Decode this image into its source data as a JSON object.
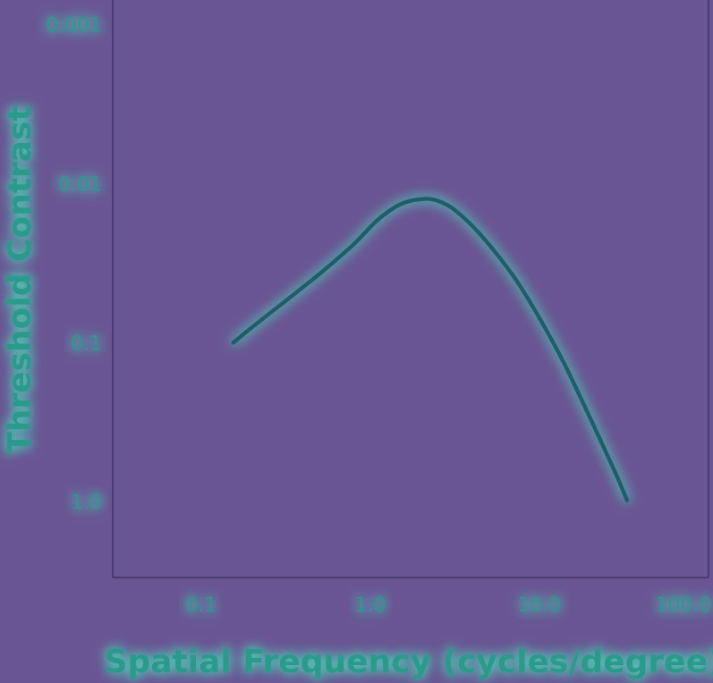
{
  "colors": {
    "background": "#6a5593",
    "text": "#2a9a8c",
    "glow": "#4fd8b8",
    "curve": "#1f5f6a",
    "axis": "#3f3567"
  },
  "chart_data": {
    "type": "line",
    "xlabel": "Spatial Frequency (cycles/degree)",
    "ylabel": "Threshold Contrast",
    "x_scale": "log",
    "y_scale": "log",
    "y_inverted": true,
    "xlim": [
      0.03,
      100.0
    ],
    "ylim": [
      0.0007,
      3.0
    ],
    "x_ticks": [
      {
        "value": 0.1,
        "label": "0.1"
      },
      {
        "value": 1.0,
        "label": "1.0"
      },
      {
        "value": 10.0,
        "label": "10.0"
      },
      {
        "value": 100.0,
        "label": "100.0"
      }
    ],
    "y_ticks": [
      {
        "value": 0.001,
        "label": "0.001"
      },
      {
        "value": 0.01,
        "label": "0.01"
      },
      {
        "value": 0.1,
        "label": "0.1"
      },
      {
        "value": 1.0,
        "label": "1.0"
      }
    ],
    "grid": false,
    "series": [
      {
        "x": [
          0.155,
          0.2,
          0.3,
          0.5,
          0.8,
          1.1,
          1.5,
          2.0,
          2.5,
          3.2,
          4.5,
          7.0,
          10.0,
          14.0,
          20.0,
          28.0,
          33.0
        ],
        "y": [
          0.1,
          0.08,
          0.057,
          0.037,
          0.024,
          0.017,
          0.0135,
          0.0125,
          0.0128,
          0.0148,
          0.021,
          0.038,
          0.07,
          0.135,
          0.3,
          0.65,
          0.98
        ]
      }
    ]
  }
}
